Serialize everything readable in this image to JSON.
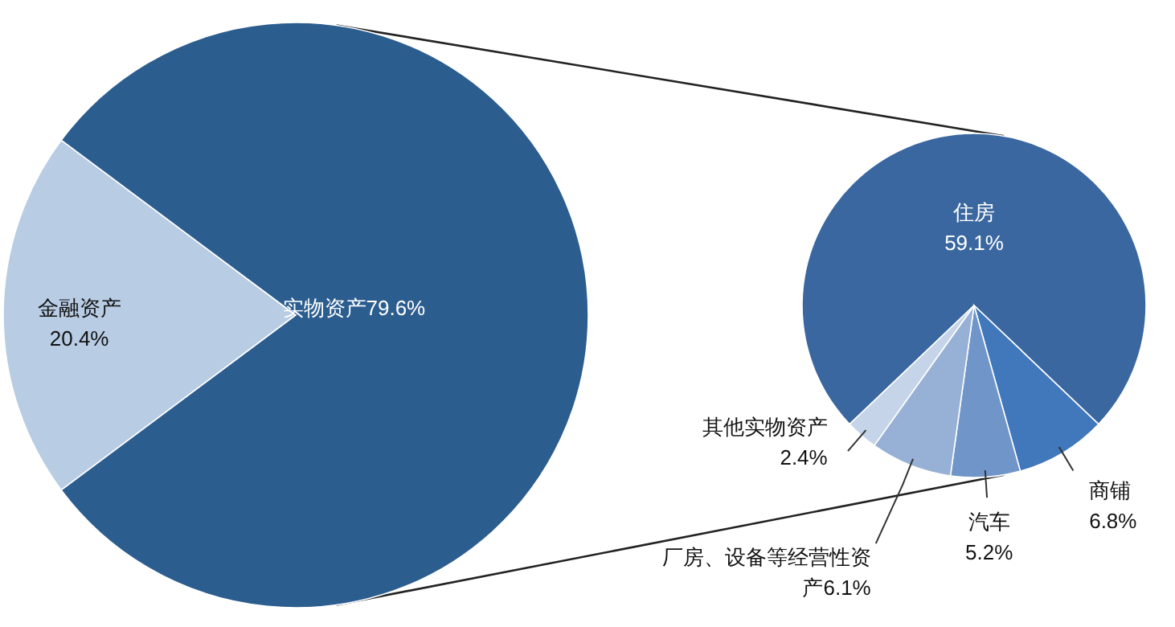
{
  "chart_data": [
    {
      "type": "pie",
      "categories": [
        "金融资产",
        "实物资产"
      ],
      "values": [
        20.4,
        79.6
      ],
      "value_labels": [
        "20.4%",
        "79.6%"
      ],
      "colors": [
        "#b8cce4",
        "#2c5d8f"
      ]
    },
    {
      "type": "pie",
      "categories": [
        "住房",
        "商铺",
        "汽车",
        "厂房、设备等经营性资产",
        "其他实物资产"
      ],
      "values": [
        59.1,
        6.8,
        5.2,
        6.1,
        2.4
      ],
      "value_labels": [
        "59.1%",
        "6.8%",
        "5.2%",
        "6.1%",
        "2.4%"
      ],
      "colors": [
        "#3a67a0",
        "#4078bb",
        "#7095c8",
        "#97b0d5",
        "#c5d4e9"
      ]
    }
  ]
}
